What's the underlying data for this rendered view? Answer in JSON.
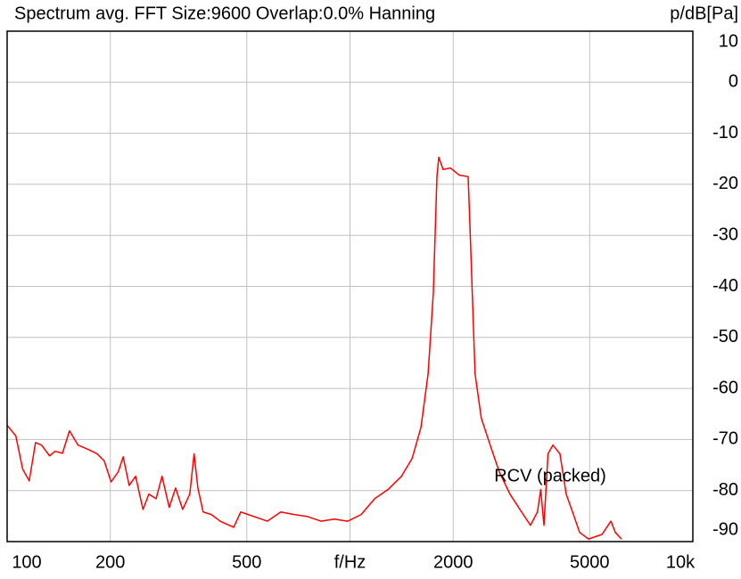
{
  "chart_data": {
    "type": "line",
    "title": "Spectrum avg.  FFT Size:9600  Overlap:0.0%  Hanning",
    "y_label": "p/dB[Pa]",
    "annotation": "RCV (packed)",
    "x_scale": "log",
    "grid": true,
    "xlim": [
      100,
      10000
    ],
    "ylim": [
      -90,
      10
    ],
    "xticks": [
      100,
      200,
      500,
      {
        "value": 1000,
        "label": "f/Hz"
      },
      2000,
      5000,
      {
        "value": 10000,
        "label": "10k"
      }
    ],
    "yticks": [
      10,
      0,
      -10,
      -20,
      -30,
      -40,
      -50,
      -60,
      -70,
      -80,
      -90
    ],
    "x": [
      100,
      106,
      111,
      116,
      121,
      126,
      133,
      138,
      145,
      152,
      161,
      173,
      183,
      192,
      201,
      211,
      218,
      227,
      237,
      249,
      259,
      272,
      283,
      297,
      310,
      325,
      341,
      351,
      360,
      373,
      394,
      418,
      458,
      480,
      525,
      574,
      628,
      687,
      752,
      823,
      900,
      985,
      1078,
      1180,
      1291,
      1413,
      1518,
      1611,
      1690,
      1750,
      1793,
      1815,
      1869,
      1962,
      2083,
      2211,
      2241,
      2316,
      2415,
      2564,
      2723,
      2928,
      3165,
      3360,
      3522,
      3600,
      3679,
      3780,
      3907,
      4096,
      4272,
      4458,
      4674,
      4962,
      5433,
      5768,
      5941,
      6194
    ],
    "series": [
      {
        "name": "RCV (packed)",
        "color": "#ff0000",
        "values": [
          -67.2,
          -69.3,
          -75.8,
          -78.1,
          -70.6,
          -71.1,
          -73.2,
          -72.3,
          -72.7,
          -68.3,
          -71.1,
          -72.0,
          -72.8,
          -74.2,
          -78.3,
          -76.3,
          -73.4,
          -79.0,
          -77.2,
          -83.7,
          -80.7,
          -81.6,
          -77.2,
          -83.3,
          -79.5,
          -83.7,
          -80.7,
          -72.8,
          -79.5,
          -84.2,
          -84.7,
          -86.0,
          -87.2,
          -84.2,
          -85.1,
          -86.0,
          -84.2,
          -84.7,
          -85.1,
          -86.0,
          -85.6,
          -86.0,
          -84.7,
          -81.6,
          -79.8,
          -77.2,
          -73.7,
          -67.6,
          -57.1,
          -41.3,
          -18.5,
          -14.7,
          -17.1,
          -16.8,
          -18.2,
          -18.5,
          -29.1,
          -57.1,
          -65.8,
          -71.1,
          -76.3,
          -80.7,
          -84.2,
          -86.8,
          -84.2,
          -79.8,
          -86.8,
          -72.8,
          -71.1,
          -72.8,
          -80.7,
          -84.2,
          -88.2,
          -89.5,
          -88.6,
          -86.0,
          -88.2,
          -89.5
        ]
      }
    ]
  }
}
